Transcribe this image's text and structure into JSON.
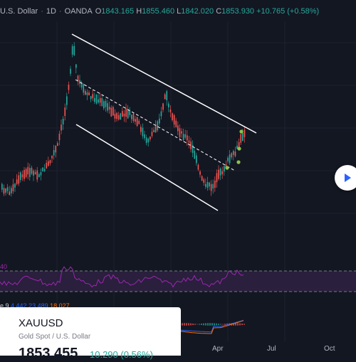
{
  "header": {
    "symbol_suffix": "U.S. Dollar",
    "sep1": "·",
    "interval": "1D",
    "sep2": "·",
    "exchange": "OANDA",
    "o_label": "O",
    "open": "1843.165",
    "h_label": "H",
    "high": "1855.460",
    "l_label": "L",
    "low": "1842.020",
    "c_label": "C",
    "close": "1853.930",
    "change": "+10.765 (+0.58%)"
  },
  "rsi": {
    "value_label": "40"
  },
  "macd": {
    "prefix": "e 9",
    "v1": "4.442",
    "v2": "23.489",
    "v3": "18.027"
  },
  "time_axis": [
    "Apr",
    "Jul",
    "Oct"
  ],
  "card": {
    "symbol": "XAUUSD",
    "description": "Gold Spot / U.S. Dollar",
    "price": "1853.455",
    "change": "10.290 (0.56%)"
  },
  "colors": {
    "background": "#131722",
    "up": "#26a69a",
    "down": "#ef5350",
    "rsi": "#9c27b0",
    "macd_line": "#2962ff",
    "signal_line": "#ff6d00",
    "signal_dots": "#8bc34a"
  },
  "icons": {
    "play": "play-icon"
  }
}
